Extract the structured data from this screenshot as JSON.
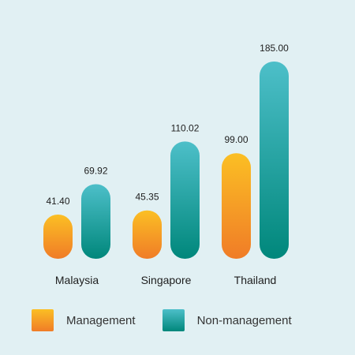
{
  "chart_data": {
    "type": "bar",
    "categories": [
      "Malaysia",
      "Singapore",
      "Thailand"
    ],
    "series": [
      {
        "name": "Management",
        "values": [
          41.4,
          45.35,
          99.0
        ],
        "labels": [
          "41.40",
          "45.35",
          "99.00"
        ]
      },
      {
        "name": "Non-management",
        "values": [
          69.92,
          110.02,
          185.0
        ],
        "labels": [
          "69.92",
          "110.02",
          "185.00"
        ]
      }
    ],
    "ylim": [
      0,
      185
    ],
    "grid": false,
    "legend_position": "bottom",
    "colors": {
      "management_top": "#fbbf24",
      "management_bottom": "#f07c27",
      "nonmanagement_top": "#4dbfc9",
      "nonmanagement_bottom": "#00877b"
    }
  }
}
